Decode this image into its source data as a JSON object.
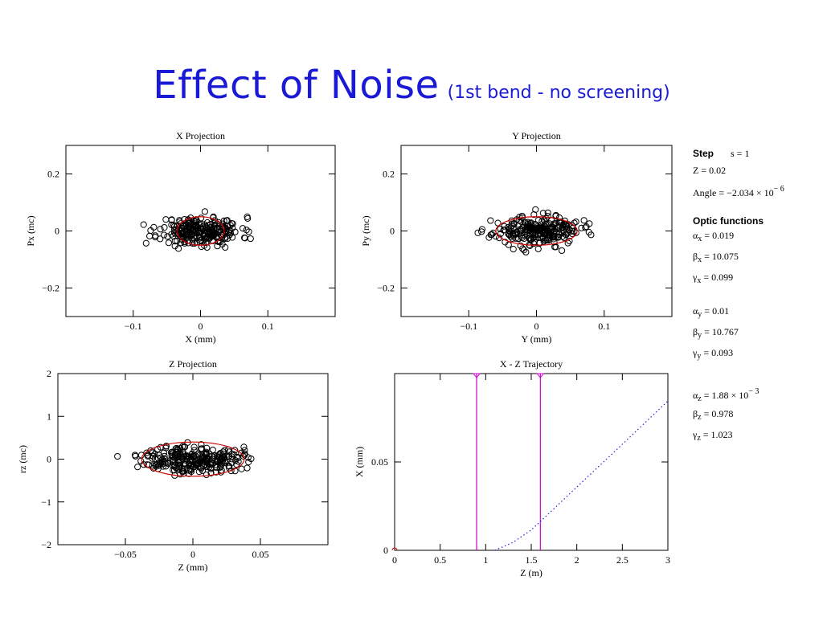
{
  "title": {
    "main": "Effect of Noise",
    "sub": "(1st bend - no screening)"
  },
  "chart_data": [
    {
      "id": "xproj",
      "type": "scatter",
      "title": "X Projection",
      "xlabel": "X (mm)",
      "ylabel": "Px (mc)",
      "xlim": [
        -0.2,
        0.2
      ],
      "ylim": [
        -0.3,
        0.3
      ],
      "xticks": [
        -0.1,
        0,
        0.1
      ],
      "xtick_labels": [
        "−0.1",
        "0",
        "0.1"
      ],
      "yticks": [
        -0.2,
        0,
        0.2
      ],
      "ytick_labels": [
        "−0.2",
        "0",
        "0.2"
      ],
      "ellipse": {
        "cx": 0,
        "cy": 0,
        "rx": 0.035,
        "ry": 0.05,
        "color": "#cc0000"
      },
      "cloud": {
        "n": 260,
        "sx": 0.03,
        "sy": 0.025,
        "xmax": 0.085,
        "ymax": 0.075,
        "seed": 11
      }
    },
    {
      "id": "yproj",
      "type": "scatter",
      "title": "Y Projection",
      "xlabel": "Y (mm)",
      "ylabel": "Py (mc)",
      "xlim": [
        -0.2,
        0.2
      ],
      "ylim": [
        -0.3,
        0.3
      ],
      "xticks": [
        -0.1,
        0,
        0.1
      ],
      "xtick_labels": [
        "−0.1",
        "0",
        "0.1"
      ],
      "yticks": [
        -0.2,
        0,
        0.2
      ],
      "ytick_labels": [
        "−0.2",
        "0",
        "0.2"
      ],
      "ellipse": {
        "cx": 0,
        "cy": 0,
        "rx": 0.06,
        "ry": 0.05,
        "color": "#cc0000"
      },
      "cloud": {
        "n": 260,
        "sx": 0.032,
        "sy": 0.025,
        "xmax": 0.095,
        "ymax": 0.075,
        "seed": 23
      }
    },
    {
      "id": "zproj",
      "type": "scatter",
      "title": "Z Projection",
      "xlabel": "Z (mm)",
      "ylabel": "rz (mc)",
      "xlim": [
        -0.1,
        0.1
      ],
      "ylim": [
        -2,
        2
      ],
      "xticks": [
        -0.05,
        0,
        0.05
      ],
      "xtick_labels": [
        "−0.05",
        "0",
        "0.05"
      ],
      "yticks": [
        -2,
        -1,
        0,
        1,
        2
      ],
      "ytick_labels": [
        "−2",
        "−1",
        "0",
        "1",
        "2"
      ],
      "ellipse": {
        "cx": 0,
        "cy": 0,
        "rx": 0.038,
        "ry": 0.4,
        "color": "#cc0000"
      },
      "cloud": {
        "n": 280,
        "sx": 0.018,
        "sy": 0.16,
        "xmax": 0.062,
        "ymax": 0.6,
        "seed": 37
      }
    },
    {
      "id": "xztraj",
      "type": "line",
      "title": "X - Z Trajectory",
      "xlabel": "Z (m)",
      "ylabel": "X (mm)",
      "xlim": [
        0,
        3
      ],
      "ylim": [
        0,
        0.1
      ],
      "xticks": [
        0,
        0.5,
        1,
        1.5,
        2,
        2.5,
        3
      ],
      "xtick_labels": [
        "0",
        "0.5",
        "1",
        "1.5",
        "2",
        "2.5",
        "3"
      ],
      "yticks": [
        0,
        0.05
      ],
      "ytick_labels": [
        "0",
        "0.05"
      ],
      "series": [
        {
          "style": "dotted",
          "color": "#2222dd",
          "x": [
            1.1,
            1.3,
            1.5,
            1.6,
            2.0,
            2.5,
            3.0
          ],
          "y": [
            0.0,
            0.0045,
            0.0115,
            0.0163,
            0.0358,
            0.06,
            0.0845
          ]
        }
      ],
      "vlines": [
        {
          "x": 0.9,
          "color": "#cc00cc"
        },
        {
          "x": 1.6,
          "color": "#cc00cc"
        }
      ]
    }
  ],
  "sidebar": {
    "step_label": "Step",
    "step_value": "s = 1",
    "z": "Z = 0.02",
    "angle_prefix": "Angle = −2.034 × 10",
    "angle_exp": "− 6",
    "optic_header": "Optic functions",
    "alpha_x": "= 0.019",
    "beta_x": "= 10.075",
    "gamma_x": "= 0.099",
    "alpha_y": "= 0.01",
    "beta_y": "= 10.767",
    "gamma_y": "= 0.093",
    "alpha_z_prefix": "= 1.88 × 10",
    "alpha_z_exp": "− 3",
    "beta_z": "= 0.978",
    "gamma_z": "= 1.023"
  }
}
